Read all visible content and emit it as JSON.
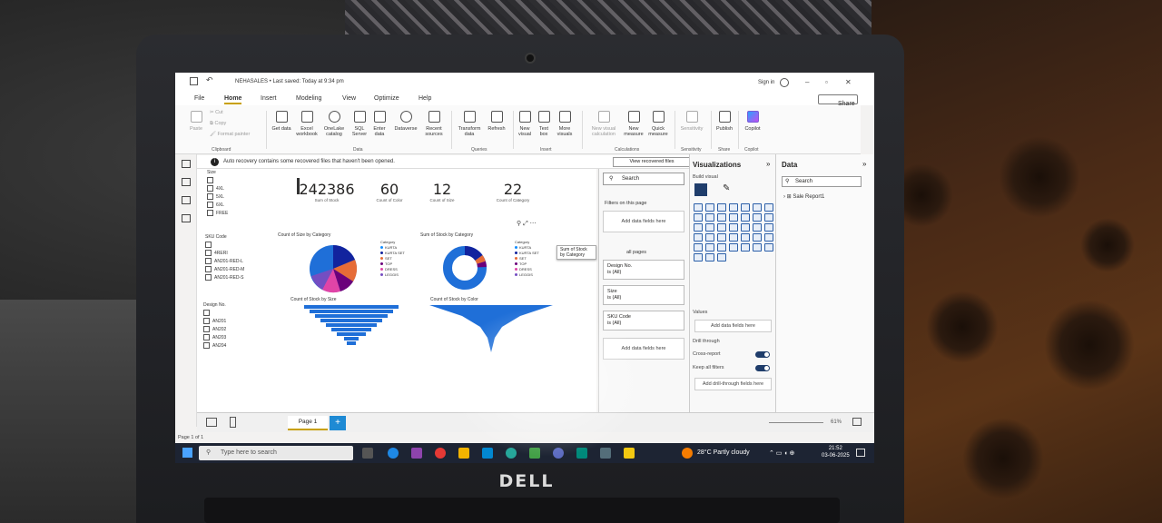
{
  "window": {
    "title": "NEHASALES • Last saved: Today at 9:34 pm",
    "signin": "Sign in",
    "share": "Share"
  },
  "menu": [
    "File",
    "Home",
    "Insert",
    "Modeling",
    "View",
    "Optimize",
    "Help"
  ],
  "ribbon": {
    "clipboard": [
      "Paste",
      "Cut",
      "Copy",
      "Format painter"
    ],
    "data": [
      "Get data",
      "Excel workbook",
      "OneLake catalog",
      "SQL Server",
      "Enter data",
      "Dataverse",
      "Recent sources"
    ],
    "queries": [
      "Transform data",
      "Refresh"
    ],
    "insert": [
      "New visual",
      "Text box",
      "More visuals"
    ],
    "calculations": [
      "New visual calculation",
      "New measure",
      "Quick measure"
    ],
    "sensitivity": [
      "Sensitivity"
    ],
    "share": [
      "Publish"
    ],
    "copilot": [
      "Copilot"
    ],
    "groups": [
      "Clipboard",
      "Data",
      "Queries",
      "Insert",
      "Calculations",
      "Sensitivity",
      "Share",
      "Copilot"
    ]
  },
  "infobar": {
    "message": "Auto recovery contains some recovered files that haven't been opened.",
    "button": "View recovered files"
  },
  "slicers": {
    "size": {
      "header": "Size",
      "options": [
        "",
        "4XL",
        "5XL",
        "6XL",
        "FREE"
      ]
    },
    "sku": {
      "header": "SKU Code",
      "options": [
        "",
        "4RERI",
        "AN201-RED-L",
        "AN201-RED-M",
        "AN201-RED-S"
      ]
    },
    "design": {
      "header": "Design No.",
      "options": [
        "",
        "AN201",
        "AN202",
        "AN203",
        "AN204"
      ]
    }
  },
  "cards": [
    {
      "value": "242386",
      "label": "Sum of Stock"
    },
    {
      "value": "60",
      "label": "Count of Color"
    },
    {
      "value": "12",
      "label": "Count of Size"
    },
    {
      "value": "22",
      "label": "Count of Category"
    }
  ],
  "charts": {
    "pie_title": "Count of Size by Category",
    "donut_title": "Sum of Stock by Category",
    "funnel1_title": "Count of Stock by Size",
    "funnel2_title": "Count of Stock by Color",
    "legend_header": "Category",
    "legend_items": [
      "KURTA",
      "KURTA SET",
      "SET",
      "TOP",
      "DRESS",
      "LEGGIS"
    ],
    "tooltip": "Sum of Stock by Category"
  },
  "filters": {
    "search": "Search",
    "on_page": "Filters on this page",
    "add_fields": "Add data fields here",
    "all_pages": "all pages",
    "cards": [
      {
        "name": "Design No.",
        "value": "is (All)"
      },
      {
        "name": "Size",
        "value": "is (All)"
      },
      {
        "name": "SKU Code",
        "value": "is (All)"
      }
    ]
  },
  "visualizations": {
    "title": "Visualizations",
    "build": "Build visual",
    "values": "Values",
    "add_fields": "Add data fields here",
    "drill": "Drill through",
    "cross_report": "Cross-report",
    "keep_filters": "Keep all filters",
    "add_drill": "Add drill-through fields here",
    "toggle_on": "On",
    "chevron": "»"
  },
  "data_pane": {
    "title": "Data",
    "search": "Search",
    "table": "Sale Report1",
    "chevron": "»"
  },
  "page": {
    "tab": "Page 1",
    "add": "+",
    "zoom": "61%",
    "status": "Page 1 of 1"
  },
  "taskbar": {
    "search": "Type here to search",
    "weather": "28°C  Partly cloudy",
    "time": "21:52",
    "date": "03-06-2025"
  },
  "brand": "DELL",
  "colors": {
    "accent": "#c8a000",
    "pbi_blue": "#1e8ad4",
    "chart_blue": "#1f6fd8"
  }
}
